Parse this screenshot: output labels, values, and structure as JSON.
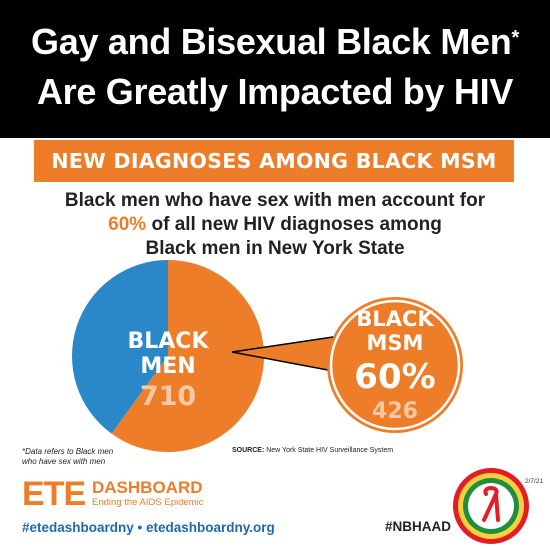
{
  "header": {
    "title_line1": "Gay and Bisexual Black Men",
    "asterisk": "*",
    "title_line2": "Are Greatly Impacted by HIV"
  },
  "banner": {
    "text": "NEW DIAGNOSES AMONG BLACK MSM"
  },
  "subtitle": {
    "line1": "Black men who have sex with men account for",
    "line2_pct": "60%",
    "line2_rest": " of all new HIV diagnoses among",
    "line3": "Black men in New York State"
  },
  "colors": {
    "orange": "#ee7d2a",
    "blue": "#2a87c8",
    "light_orange_text": "#f6c9a4",
    "black": "#000000"
  },
  "chart_data": {
    "type": "pie",
    "slices": [
      {
        "label": "BLACK MEN",
        "value": 710
      },
      {
        "label": "BLACK MSM",
        "value": 426,
        "percent": 60
      }
    ],
    "callout": {
      "line1": "BLACK",
      "line2": "MSM",
      "percent": "60%",
      "value": "426"
    },
    "main_label": {
      "line1": "BLACK",
      "line2": "MEN",
      "value": "710"
    }
  },
  "footnote": {
    "line1": "*Data refers to Black men",
    "line2": "who have sex with men"
  },
  "source": {
    "label": "SOURCE:",
    "text": " New York State HIV Surveillance System"
  },
  "footer": {
    "logo_big": "ETE",
    "logo_dashboard": "DASHBOARD",
    "logo_tagline": "Ending the AIDS Epidemic",
    "hashtags": "#etedashboardny • etedashboardny.org",
    "nbhaad": "#NBHAAD",
    "date": "2/7/21"
  }
}
